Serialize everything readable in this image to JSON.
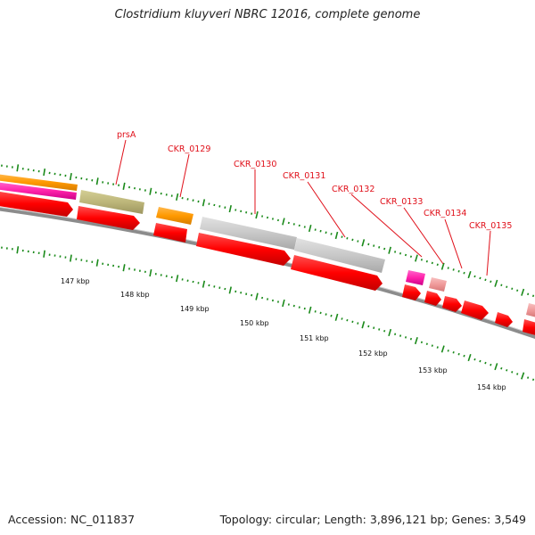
{
  "title": "Clostridium kluyveri NBRC 12016, complete genome",
  "footer": {
    "accession": "Accession: NC_011837",
    "topology": "Topology: circular; Length: 3,896,121 bp; Genes: 3,549"
  },
  "ticks": [
    {
      "label": "147 kbp"
    },
    {
      "label": "148 kbp"
    },
    {
      "label": "149 kbp"
    },
    {
      "label": "150 kbp"
    },
    {
      "label": "151 kbp"
    },
    {
      "label": "152 kbp"
    },
    {
      "label": "153 kbp"
    },
    {
      "label": "154 kbp"
    }
  ],
  "genes": [
    {
      "label": "prsA"
    },
    {
      "label": "CKR_0129"
    },
    {
      "label": "CKR_0130"
    },
    {
      "label": "CKR_0131"
    },
    {
      "label": "CKR_0132"
    },
    {
      "label": "CKR_0133"
    },
    {
      "label": "CKR_0134"
    },
    {
      "label": "CKR_0135"
    }
  ],
  "colors": {
    "cds": "#ff0000",
    "label": "#e0101a",
    "tick": "#1a8a1a",
    "backbone": "#8c8c8c",
    "grey_feature": "#c8c8c8",
    "olive_feature": "#bdb67a",
    "orange_feature": "#ff9900",
    "magenta_feature": "#ff22aa",
    "pink_feature": "#f09a9a"
  }
}
